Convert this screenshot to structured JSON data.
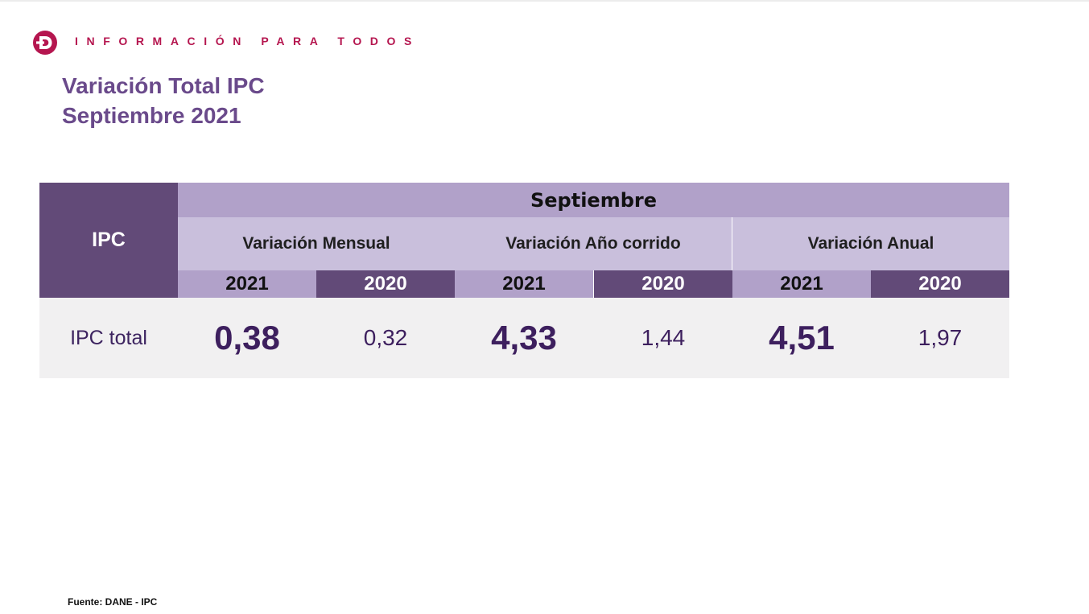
{
  "header": {
    "logo_letter": "D",
    "tagline": "INFORMACIÓN PARA TODOS",
    "brand_color": "#b5164f"
  },
  "title": {
    "line1": "Variación Total IPC",
    "line2": "Septiembre 2021"
  },
  "table": {
    "row_header": "IPC",
    "month": "Septiembre",
    "groups": [
      {
        "label": "Variación Mensual",
        "years": [
          "2021",
          "2020"
        ],
        "values": [
          "0,38",
          "0,32"
        ]
      },
      {
        "label": "Variación Año corrido",
        "years": [
          "2021",
          "2020"
        ],
        "values": [
          "4,33",
          "1,44"
        ]
      },
      {
        "label": "Variación Anual",
        "years": [
          "2021",
          "2020"
        ],
        "values": [
          "4,51",
          "1,97"
        ]
      }
    ],
    "row_label": "IPC total",
    "colors": {
      "dark_purple": "#624a78",
      "mid_purple": "#b1a1c9",
      "light_purple": "#c9bfdc",
      "row_background": "#f1f0f1"
    }
  },
  "source": "Fuente: DANE - IPC"
}
